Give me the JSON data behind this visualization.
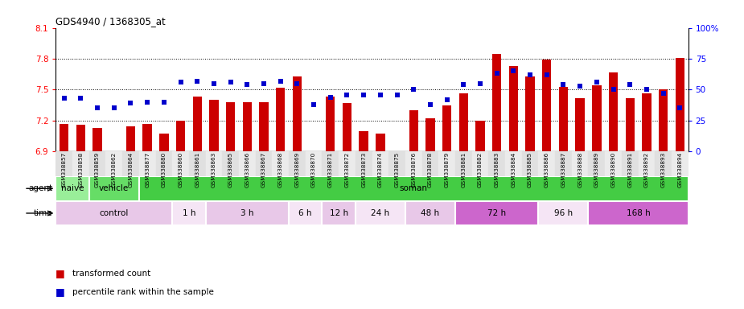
{
  "title": "GDS4940 / 1368305_at",
  "categories": [
    "GSM338857",
    "GSM338858",
    "GSM338859",
    "GSM338862",
    "GSM338864",
    "GSM338877",
    "GSM338880",
    "GSM338860",
    "GSM338861",
    "GSM338863",
    "GSM338865",
    "GSM338866",
    "GSM338867",
    "GSM338868",
    "GSM338869",
    "GSM338870",
    "GSM338871",
    "GSM338872",
    "GSM338873",
    "GSM338874",
    "GSM338875",
    "GSM338876",
    "GSM338878",
    "GSM338879",
    "GSM338881",
    "GSM338882",
    "GSM338883",
    "GSM338884",
    "GSM338885",
    "GSM338886",
    "GSM338887",
    "GSM338888",
    "GSM338889",
    "GSM338890",
    "GSM338891",
    "GSM338892",
    "GSM338893",
    "GSM338894"
  ],
  "bar_values": [
    7.17,
    7.16,
    7.13,
    6.9,
    7.14,
    7.17,
    7.07,
    7.2,
    7.43,
    7.4,
    7.38,
    7.38,
    7.38,
    7.52,
    7.63,
    6.9,
    7.43,
    7.37,
    7.1,
    7.07,
    6.9,
    7.3,
    7.22,
    7.35,
    7.46,
    7.2,
    7.85,
    7.73,
    7.63,
    7.79,
    7.53,
    7.42,
    7.54,
    7.67,
    7.42,
    7.46,
    7.5,
    7.81
  ],
  "percentile_values": [
    43,
    43,
    35,
    35,
    39,
    40,
    40,
    56,
    57,
    55,
    56,
    54,
    55,
    57,
    55,
    38,
    44,
    46,
    46,
    46,
    46,
    50,
    38,
    42,
    54,
    55,
    63,
    65,
    62,
    62,
    54,
    53,
    56,
    50,
    54,
    50,
    47,
    35
  ],
  "ylim_left": [
    6.9,
    8.1
  ],
  "ylim_right": [
    0,
    100
  ],
  "yticks_left": [
    6.9,
    7.2,
    7.5,
    7.8,
    8.1
  ],
  "yticks_right": [
    0,
    25,
    50,
    75,
    100
  ],
  "ytick_labels_right": [
    "0",
    "25",
    "50",
    "75",
    "100%"
  ],
  "bar_color": "#cc0000",
  "percentile_color": "#0000cc",
  "agent_ranges": [
    [
      0,
      2,
      "naive",
      "#99ee99"
    ],
    [
      2,
      5,
      "vehicle",
      "#66dd66"
    ],
    [
      5,
      38,
      "soman",
      "#44cc44"
    ]
  ],
  "time_ranges": [
    [
      0,
      7,
      "control",
      "#e8c8e8"
    ],
    [
      7,
      9,
      "1 h",
      "#f5e5f5"
    ],
    [
      9,
      14,
      "3 h",
      "#e8c8e8"
    ],
    [
      14,
      16,
      "6 h",
      "#f5e5f5"
    ],
    [
      16,
      18,
      "12 h",
      "#e8c8e8"
    ],
    [
      18,
      21,
      "24 h",
      "#f5e5f5"
    ],
    [
      21,
      24,
      "48 h",
      "#e8c8e8"
    ],
    [
      24,
      29,
      "72 h",
      "#cc66cc"
    ],
    [
      29,
      32,
      "96 h",
      "#f5e5f5"
    ],
    [
      32,
      38,
      "168 h",
      "#cc66cc"
    ]
  ],
  "background_color": "#ffffff"
}
